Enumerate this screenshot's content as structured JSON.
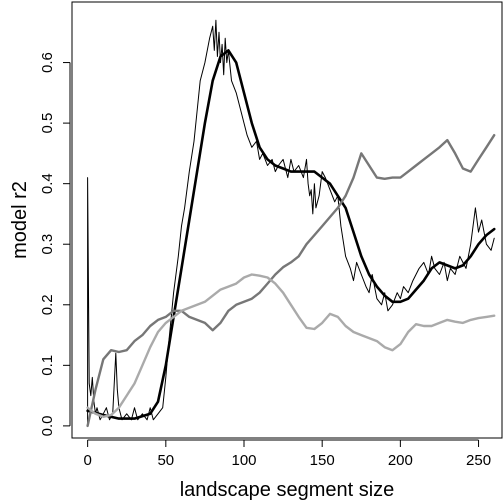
{
  "chart_data": {
    "type": "line",
    "title": "",
    "xlabel": "landscape segment size",
    "ylabel": "model r2",
    "xlim": [
      -10,
      265
    ],
    "ylim": [
      -0.02,
      0.7
    ],
    "xticks": [
      0,
      50,
      100,
      150,
      200,
      250
    ],
    "yticks": [
      0.0,
      0.1,
      0.2,
      0.3,
      0.4,
      0.5,
      0.6
    ],
    "grid": false,
    "legend": "none",
    "series": [
      {
        "color": "#000000",
        "style": "thin noisy line",
        "x": [
          0,
          0,
          1,
          2,
          3,
          4,
          5,
          6,
          8,
          10,
          12,
          14,
          16,
          18,
          19,
          20,
          22,
          25,
          28,
          30,
          32,
          35,
          38,
          40,
          42,
          45,
          48,
          50,
          52,
          55,
          58,
          60,
          62,
          65,
          68,
          70,
          72,
          75,
          78,
          80,
          81,
          82,
          83,
          84,
          85,
          86,
          87,
          88,
          89,
          90,
          92,
          95,
          98,
          100,
          102,
          105,
          108,
          110,
          112,
          115,
          118,
          120,
          122,
          125,
          128,
          130,
          132,
          135,
          138,
          140,
          141,
          142,
          143,
          144,
          145,
          146,
          148,
          150,
          152,
          155,
          158,
          160,
          162,
          165,
          168,
          170,
          172,
          175,
          178,
          180,
          182,
          185,
          188,
          190,
          192,
          195,
          198,
          200,
          202,
          205,
          208,
          210,
          212,
          215,
          218,
          220,
          222,
          225,
          228,
          230,
          232,
          235,
          238,
          240,
          242,
          245,
          248,
          250,
          252,
          255,
          258,
          260
        ],
        "y": [
          0.0,
          0.41,
          0.07,
          0.05,
          0.08,
          0.04,
          0.02,
          0.03,
          0.01,
          0.02,
          0.03,
          0.01,
          0.02,
          0.12,
          0.06,
          0.03,
          0.01,
          0.02,
          0.01,
          0.03,
          0.01,
          0.02,
          0.01,
          0.03,
          0.01,
          0.02,
          0.03,
          0.08,
          0.14,
          0.22,
          0.28,
          0.33,
          0.36,
          0.42,
          0.47,
          0.52,
          0.57,
          0.6,
          0.64,
          0.66,
          0.62,
          0.67,
          0.61,
          0.65,
          0.6,
          0.63,
          0.58,
          0.64,
          0.6,
          0.62,
          0.57,
          0.55,
          0.52,
          0.5,
          0.48,
          0.46,
          0.47,
          0.44,
          0.45,
          0.43,
          0.44,
          0.42,
          0.43,
          0.44,
          0.41,
          0.44,
          0.42,
          0.43,
          0.41,
          0.44,
          0.4,
          0.38,
          0.39,
          0.35,
          0.4,
          0.36,
          0.38,
          0.42,
          0.41,
          0.39,
          0.37,
          0.38,
          0.33,
          0.28,
          0.26,
          0.24,
          0.27,
          0.25,
          0.23,
          0.22,
          0.25,
          0.21,
          0.2,
          0.22,
          0.19,
          0.2,
          0.22,
          0.21,
          0.23,
          0.22,
          0.24,
          0.25,
          0.26,
          0.27,
          0.25,
          0.28,
          0.26,
          0.25,
          0.27,
          0.24,
          0.26,
          0.25,
          0.28,
          0.27,
          0.26,
          0.3,
          0.36,
          0.32,
          0.34,
          0.3,
          0.29,
          0.31
        ]
      },
      {
        "color": "#000000",
        "style": "thick smooth line",
        "x": [
          0,
          10,
          20,
          30,
          40,
          45,
          50,
          55,
          60,
          65,
          70,
          75,
          80,
          85,
          90,
          95,
          100,
          105,
          110,
          115,
          120,
          125,
          130,
          135,
          140,
          145,
          150,
          155,
          160,
          165,
          170,
          175,
          180,
          185,
          190,
          195,
          200,
          205,
          210,
          215,
          220,
          225,
          230,
          235,
          240,
          245,
          250,
          255,
          260
        ],
        "y": [
          0.025,
          0.018,
          0.012,
          0.012,
          0.02,
          0.04,
          0.1,
          0.18,
          0.26,
          0.34,
          0.42,
          0.5,
          0.57,
          0.61,
          0.62,
          0.6,
          0.55,
          0.5,
          0.46,
          0.44,
          0.43,
          0.425,
          0.42,
          0.42,
          0.42,
          0.42,
          0.41,
          0.4,
          0.38,
          0.36,
          0.32,
          0.28,
          0.25,
          0.23,
          0.215,
          0.205,
          0.205,
          0.21,
          0.225,
          0.24,
          0.26,
          0.27,
          0.265,
          0.26,
          0.265,
          0.28,
          0.3,
          0.315,
          0.325
        ]
      },
      {
        "color": "#777777",
        "style": "medium smooth line",
        "x": [
          0,
          5,
          10,
          15,
          20,
          25,
          30,
          35,
          40,
          45,
          50,
          55,
          60,
          65,
          70,
          75,
          80,
          85,
          90,
          95,
          100,
          105,
          110,
          115,
          120,
          125,
          130,
          135,
          140,
          145,
          150,
          155,
          160,
          165,
          170,
          175,
          180,
          185,
          190,
          195,
          200,
          205,
          210,
          215,
          220,
          225,
          230,
          235,
          240,
          245,
          250,
          255,
          260
        ],
        "y": [
          0.0,
          0.06,
          0.11,
          0.125,
          0.122,
          0.125,
          0.14,
          0.15,
          0.165,
          0.175,
          0.18,
          0.19,
          0.19,
          0.18,
          0.175,
          0.17,
          0.158,
          0.17,
          0.19,
          0.2,
          0.205,
          0.21,
          0.22,
          0.235,
          0.25,
          0.262,
          0.27,
          0.28,
          0.3,
          0.315,
          0.33,
          0.345,
          0.36,
          0.38,
          0.41,
          0.45,
          0.43,
          0.41,
          0.408,
          0.41,
          0.41,
          0.42,
          0.43,
          0.44,
          0.45,
          0.46,
          0.472,
          0.45,
          0.425,
          0.42,
          0.44,
          0.46,
          0.48
        ]
      },
      {
        "color": "#aaaaaa",
        "style": "medium smooth line",
        "x": [
          0,
          5,
          10,
          15,
          20,
          25,
          30,
          35,
          40,
          45,
          50,
          55,
          60,
          65,
          70,
          75,
          80,
          85,
          90,
          95,
          100,
          105,
          110,
          115,
          120,
          125,
          130,
          135,
          140,
          145,
          150,
          155,
          160,
          165,
          170,
          175,
          180,
          185,
          190,
          195,
          200,
          205,
          210,
          215,
          220,
          225,
          230,
          235,
          240,
          245,
          250,
          255,
          260
        ],
        "y": [
          0.03,
          0.02,
          0.015,
          0.018,
          0.03,
          0.05,
          0.07,
          0.1,
          0.13,
          0.155,
          0.17,
          0.18,
          0.19,
          0.195,
          0.2,
          0.205,
          0.215,
          0.225,
          0.23,
          0.235,
          0.245,
          0.25,
          0.248,
          0.245,
          0.235,
          0.22,
          0.2,
          0.18,
          0.162,
          0.16,
          0.17,
          0.185,
          0.18,
          0.165,
          0.155,
          0.15,
          0.145,
          0.14,
          0.13,
          0.125,
          0.135,
          0.155,
          0.168,
          0.165,
          0.165,
          0.17,
          0.175,
          0.172,
          0.17,
          0.175,
          0.178,
          0.18,
          0.182
        ]
      }
    ]
  }
}
